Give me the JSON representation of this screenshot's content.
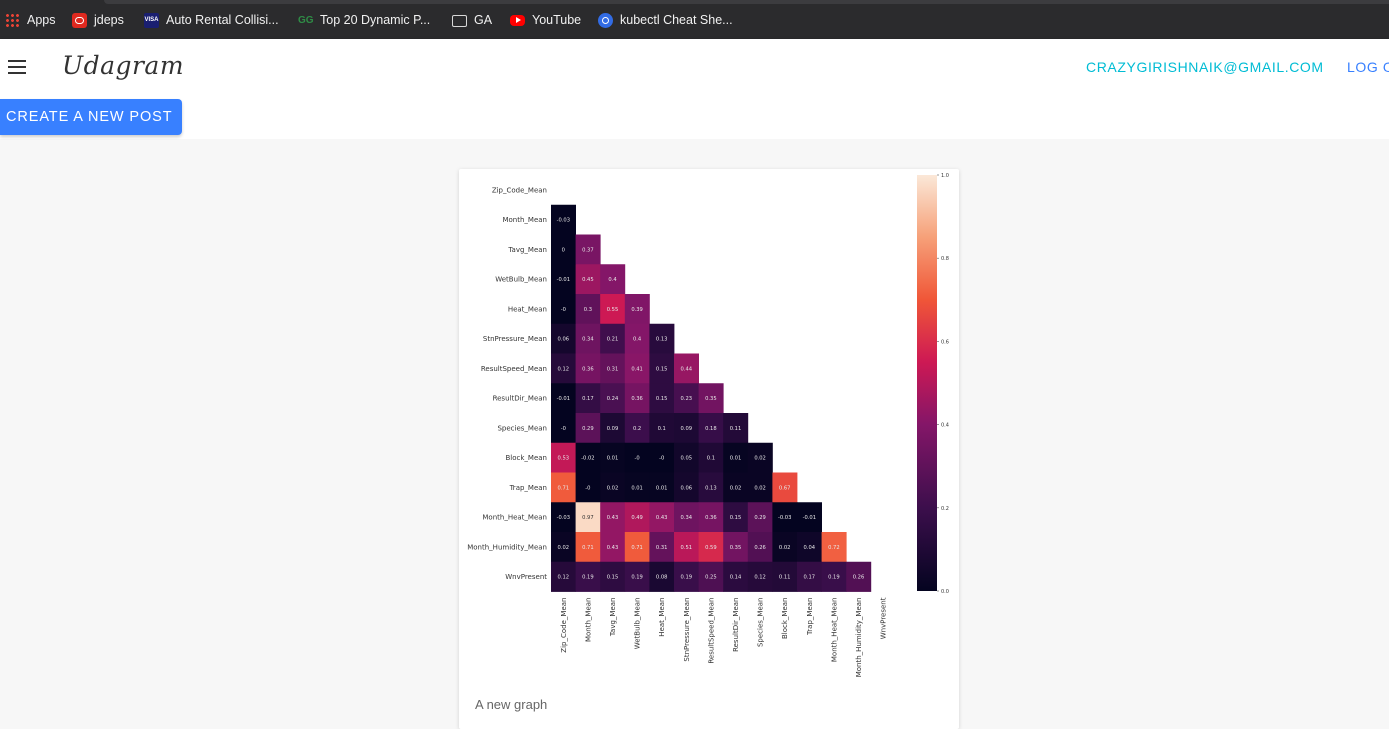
{
  "bookmarks": [
    {
      "icon": "apps-icon",
      "label": "Apps"
    },
    {
      "icon": "jdeps-icon",
      "label": "jdeps"
    },
    {
      "icon": "visa-icon",
      "label": "Auto Rental Collisi..."
    },
    {
      "icon": "gfg-icon",
      "label": "Top 20 Dynamic P..."
    },
    {
      "icon": "folder-icon",
      "label": "GA"
    },
    {
      "icon": "youtube-icon",
      "label": "YouTube"
    },
    {
      "icon": "kubernetes-icon",
      "label": "kubectl Cheat She..."
    }
  ],
  "header": {
    "brand": "Udagram",
    "user_email": "CRAZYGIRISHNAIK@GMAIL.COM",
    "logout_label": "LOG O"
  },
  "toolbar": {
    "create_label": "CREATE A NEW POST"
  },
  "post": {
    "caption": "A new graph"
  },
  "colors": {
    "accent": "#3880ff",
    "email": "#00bcd4"
  },
  "chart_data": {
    "type": "heatmap",
    "labels": [
      "Zip_Code_Mean",
      "Month_Mean",
      "Tavg_Mean",
      "WetBulb_Mean",
      "Heat_Mean",
      "StnPressure_Mean",
      "ResultSpeed_Mean",
      "ResultDir_Mean",
      "Species_Mean",
      "Block_Mean",
      "Trap_Mean",
      "Month_Heat_Mean",
      "Month_Humidity_Mean",
      "WnvPresent"
    ],
    "rows": [
      [],
      [
        "-0.03"
      ],
      [
        "0",
        "0.37"
      ],
      [
        "-0.01",
        "0.45",
        "0.4"
      ],
      [
        "-0",
        "0.3",
        "0.55",
        "0.39"
      ],
      [
        "0.06",
        "0.34",
        "0.21",
        "0.4",
        "0.13"
      ],
      [
        "0.12",
        "0.36",
        "0.31",
        "0.41",
        "0.15",
        "0.44"
      ],
      [
        "-0.01",
        "0.17",
        "0.24",
        "0.36",
        "0.15",
        "0.23",
        "0.35"
      ],
      [
        "-0",
        "0.29",
        "0.09",
        "0.2",
        "0.1",
        "0.09",
        "0.18",
        "0.11"
      ],
      [
        "0.53",
        "-0.02",
        "0.01",
        "-0",
        "-0",
        "0.05",
        "0.1",
        "0.01",
        "0.02"
      ],
      [
        "0.71",
        "-0",
        "0.02",
        "0.01",
        "0.01",
        "0.06",
        "0.13",
        "0.02",
        "0.02",
        "0.67"
      ],
      [
        "-0.03",
        "0.97",
        "0.43",
        "0.49",
        "0.43",
        "0.34",
        "0.36",
        "0.15",
        "0.29",
        "-0.03",
        "-0.01"
      ],
      [
        "0.02",
        "0.71",
        "0.43",
        "0.71",
        "0.31",
        "0.51",
        "0.59",
        "0.35",
        "0.26",
        "0.02",
        "0.04",
        "0.72"
      ],
      [
        "0.12",
        "0.19",
        "0.15",
        "0.19",
        "0.08",
        "0.19",
        "0.25",
        "0.14",
        "0.12",
        "0.11",
        "0.17",
        "0.19",
        "0.26"
      ]
    ],
    "colorbar_ticks": [
      "1.0",
      "0.8",
      "0.6",
      "0.4",
      "0.2",
      "0.0"
    ],
    "value_range": [
      0,
      1
    ]
  }
}
